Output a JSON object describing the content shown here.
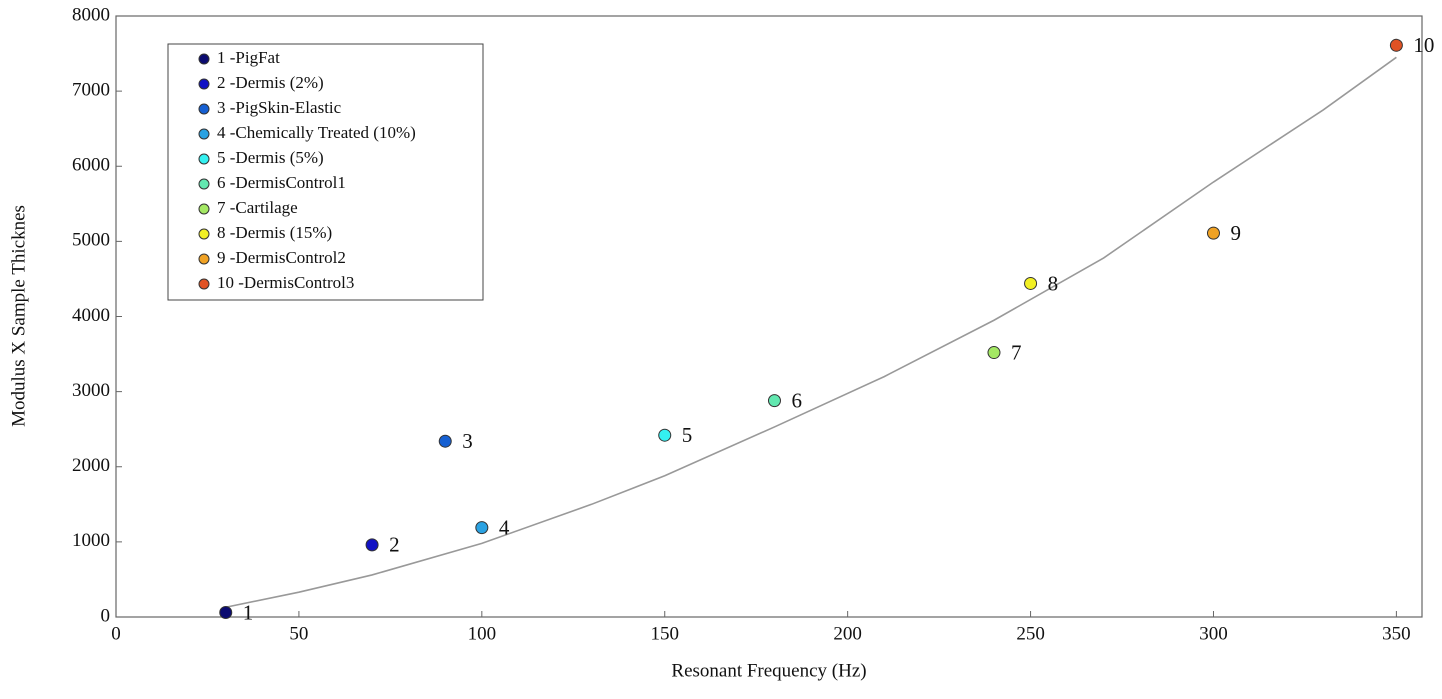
{
  "chart_data": {
    "type": "scatter",
    "x_label": "Resonant Frequency (Hz)",
    "y_label": "Modulus X Sample Thicknes",
    "xlim": [
      0,
      357
    ],
    "ylim": [
      0,
      8000
    ],
    "xticks": [
      0,
      50,
      100,
      150,
      200,
      250,
      300,
      350
    ],
    "yticks": [
      0,
      1000,
      2000,
      3000,
      4000,
      5000,
      6000,
      7000,
      8000
    ],
    "grid": false,
    "legend": "upper-left",
    "series": [
      {
        "name": "1 -PigFat",
        "color": "#0b0b70",
        "label": "1",
        "x": [
          30
        ],
        "values": [
          60
        ]
      },
      {
        "name": "2 -Dermis (2%)",
        "color": "#1212c4",
        "label": "2",
        "x": [
          70
        ],
        "values": [
          960
        ]
      },
      {
        "name": "3 -PigSkin-Elastic",
        "color": "#1660d2",
        "label": "3",
        "x": [
          90
        ],
        "values": [
          2340
        ]
      },
      {
        "name": "4 -Chemically Treated (10%)",
        "color": "#2ba2e2",
        "label": "4",
        "x": [
          100
        ],
        "values": [
          1190
        ]
      },
      {
        "name": "5 -Dermis (5%)",
        "color": "#34f0f0",
        "label": "5",
        "x": [
          150
        ],
        "values": [
          2420
        ]
      },
      {
        "name": "6 -DermisControl1",
        "color": "#62e8b0",
        "label": "6",
        "x": [
          180
        ],
        "values": [
          2880
        ]
      },
      {
        "name": "7 -Cartilage",
        "color": "#a4e864",
        "label": "7",
        "x": [
          240
        ],
        "values": [
          3520
        ]
      },
      {
        "name": "8 -Dermis (15%)",
        "color": "#f2f024",
        "label": "8",
        "x": [
          250
        ],
        "values": [
          4440
        ]
      },
      {
        "name": "9 -DermisControl2",
        "color": "#f0a224",
        "label": "9",
        "x": [
          300
        ],
        "values": [
          5110
        ]
      },
      {
        "name": "10 -DermisControl3",
        "color": "#e05224",
        "label": "10",
        "x": [
          350
        ],
        "values": [
          7610
        ]
      }
    ],
    "fit": {
      "color": "#999999",
      "x": [
        30,
        50,
        70,
        100,
        130,
        150,
        180,
        210,
        240,
        270,
        300,
        330,
        350
      ],
      "values": [
        130,
        330,
        560,
        980,
        1500,
        1880,
        2530,
        3200,
        3950,
        4780,
        5790,
        6750,
        7450
      ]
    }
  }
}
